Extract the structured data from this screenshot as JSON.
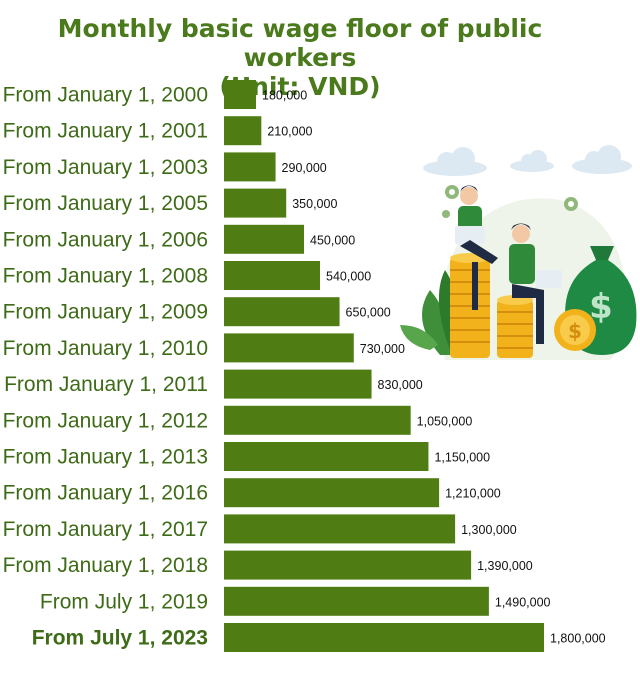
{
  "chart_data": {
    "type": "bar",
    "orientation": "horizontal",
    "title": "Monthly basic wage floor of public workers",
    "subtitle": "(Unit: VND)",
    "categories": [
      "From January 1, 2000",
      "From January 1, 2001",
      "From January 1, 2003",
      "From January 1, 2005",
      "From January 1, 2006",
      "From January 1, 2008",
      "From January 1, 2009",
      "From January 1, 2010",
      "From January 1, 2011",
      "From January 1, 2012",
      "From January 1, 2013",
      "From January 1, 2016",
      "From January 1, 2017",
      "From January 1, 2018",
      "From July 1, 2019",
      "From July 1, 2023"
    ],
    "values": [
      180000,
      210000,
      290000,
      350000,
      450000,
      540000,
      650000,
      730000,
      830000,
      1050000,
      1150000,
      1210000,
      1300000,
      1390000,
      1490000,
      1800000
    ],
    "value_labels": [
      "180,000",
      "210,000",
      "290,000",
      "350,000",
      "450,000",
      "540,000",
      "650,000",
      "730,000",
      "830,000",
      "1,050,000",
      "1,150,000",
      "1,210,000",
      "1,300,000",
      "1,390,000",
      "1,490,000",
      "1,800,000"
    ],
    "xlabel": "",
    "ylabel": "",
    "grid": false,
    "legend": "none",
    "bar_color": "#4f7d14",
    "label_color": "#3e6b17"
  },
  "illustration": {
    "icon": "wage-money-illustration-icon",
    "money_symbol": "$"
  }
}
